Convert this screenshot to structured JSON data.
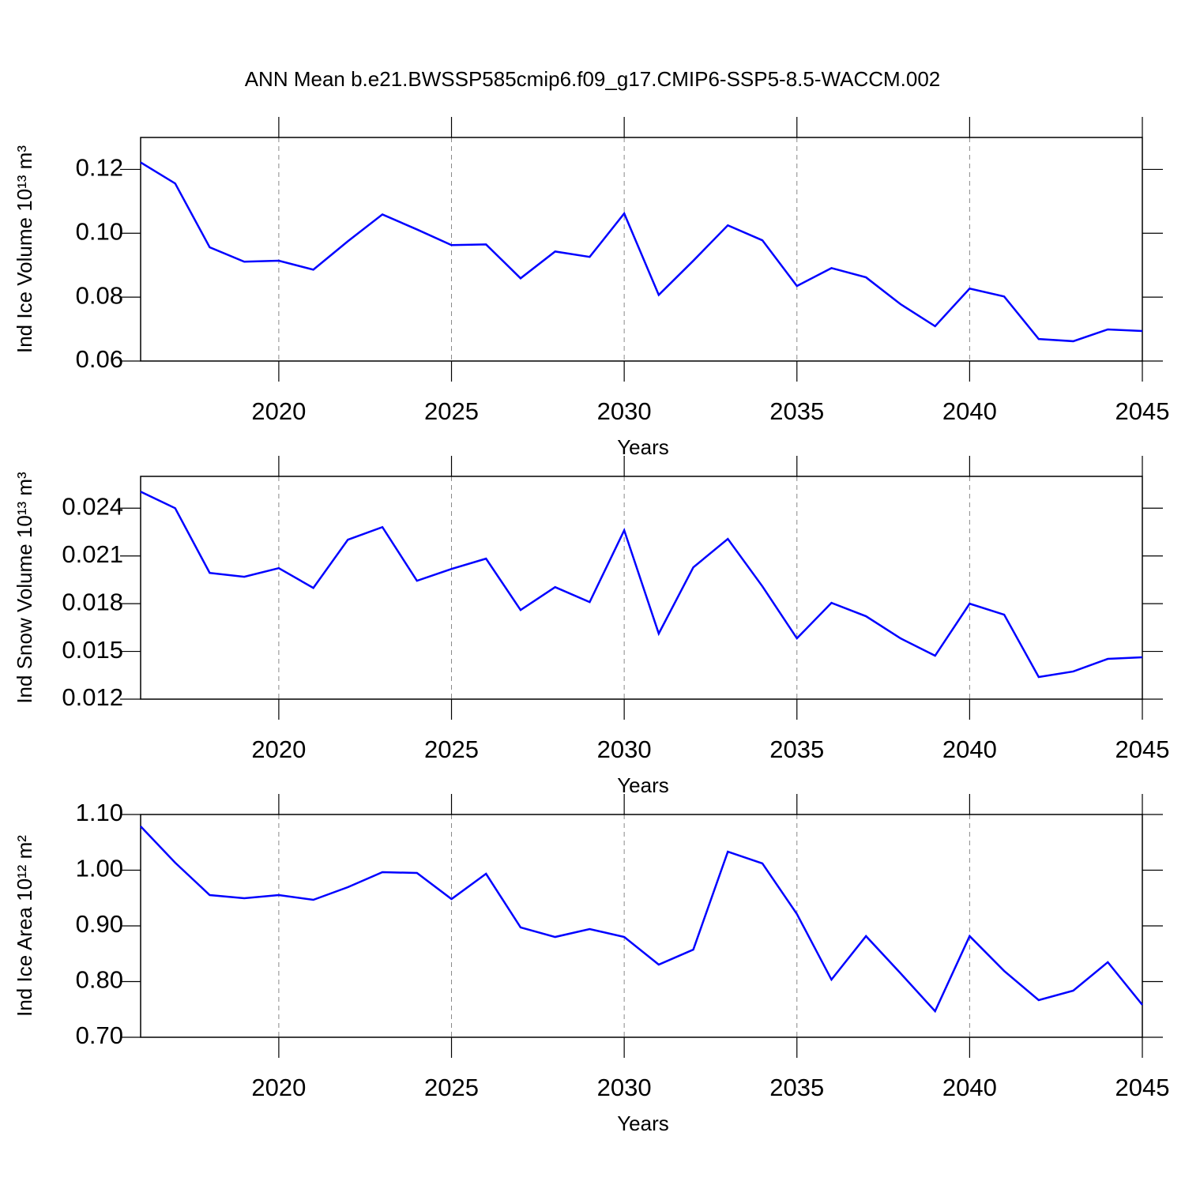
{
  "title": "ANN Mean b.e21.BWSSP585cmip6.f09_g17.CMIP6-SSP5-8.5-WACCM.002",
  "chart_data": [
    {
      "type": "line",
      "ylabel": "Ind Ice Volume 10¹³ m³",
      "xlabel": "Years",
      "color": "#0000ff",
      "xgrid": true,
      "x": [
        2016,
        2017,
        2018,
        2019,
        2020,
        2021,
        2022,
        2023,
        2024,
        2025,
        2026,
        2027,
        2028,
        2029,
        2030,
        2031,
        2032,
        2033,
        2034,
        2035,
        2036,
        2037,
        2038,
        2039,
        2040,
        2041,
        2042,
        2043,
        2044,
        2045
      ],
      "values": [
        0.1222,
        0.1156,
        0.0956,
        0.0911,
        0.0914,
        0.0886,
        0.0975,
        0.1059,
        0.1012,
        0.0963,
        0.0965,
        0.0859,
        0.0943,
        0.0926,
        0.1062,
        0.0807,
        0.0914,
        0.1025,
        0.0978,
        0.0835,
        0.0891,
        0.0862,
        0.0778,
        0.0709,
        0.0827,
        0.0802,
        0.0669,
        0.0662,
        0.0699,
        0.0694
      ],
      "xlim": [
        2016,
        2045
      ],
      "xticks": [
        2020,
        2025,
        2030,
        2035,
        2040,
        2045
      ],
      "ylim": [
        0.06,
        0.13
      ],
      "yticks": [
        0.06,
        0.08,
        {
          "value": 0.1,
          "label": "0.10"
        },
        0.12
      ]
    },
    {
      "type": "line",
      "ylabel": "Ind Snow Volume 10¹³ m³",
      "xlabel": "Years",
      "color": "#0000ff",
      "xgrid": true,
      "x": [
        2016,
        2017,
        2018,
        2019,
        2020,
        2021,
        2022,
        2023,
        2024,
        2025,
        2026,
        2027,
        2028,
        2029,
        2030,
        2031,
        2032,
        2033,
        2034,
        2035,
        2036,
        2037,
        2038,
        2039,
        2040,
        2041,
        2042,
        2043,
        2044,
        2045
      ],
      "values": [
        0.02504,
        0.024,
        0.01993,
        0.01969,
        0.02023,
        0.01899,
        0.02202,
        0.02281,
        0.01944,
        0.02018,
        0.02083,
        0.0176,
        0.01904,
        0.0181,
        0.02261,
        0.01612,
        0.02028,
        0.02207,
        0.01909,
        0.01582,
        0.01805,
        0.01721,
        0.01582,
        0.01473,
        0.018,
        0.01731,
        0.01339,
        0.01374,
        0.01453,
        0.01463
      ],
      "xlim": [
        2016,
        2045
      ],
      "xticks": [
        2020,
        2025,
        2030,
        2035,
        2040,
        2045
      ],
      "ylim": [
        0.012,
        0.026
      ],
      "yticks": [
        0.012,
        0.015,
        0.018,
        0.021,
        0.024
      ]
    },
    {
      "type": "line",
      "ylabel": "Ind Ice Area 10¹² m²",
      "xlabel": "Years",
      "color": "#0000ff",
      "xgrid": true,
      "x": [
        2016,
        2017,
        2018,
        2019,
        2020,
        2021,
        2022,
        2023,
        2024,
        2025,
        2026,
        2027,
        2028,
        2029,
        2030,
        2031,
        2032,
        2033,
        2034,
        2035,
        2036,
        2037,
        2038,
        2039,
        2040,
        2041,
        2042,
        2043,
        2044,
        2045
      ],
      "values": [
        1.0787,
        1.0135,
        0.9553,
        0.9496,
        0.9553,
        0.9468,
        0.9695,
        0.9965,
        0.995,
        0.9482,
        0.9936,
        0.8972,
        0.8801,
        0.8943,
        0.8801,
        0.8305,
        0.8574,
        1.0333,
        1.0121,
        0.9213,
        0.8035,
        0.8816,
        0.8149,
        0.7468,
        0.8816,
        0.8191,
        0.7667,
        0.7837,
        0.8348,
        0.7582
      ],
      "xlim": [
        2016,
        2045
      ],
      "xticks": [
        2020,
        2025,
        2030,
        2035,
        2040,
        2045
      ],
      "ylim": [
        0.7,
        1.1
      ],
      "yticks": [
        {
          "value": 0.7,
          "label": "0.70"
        },
        {
          "value": 0.8,
          "label": "0.80"
        },
        {
          "value": 0.9,
          "label": "0.90"
        },
        {
          "value": 1.0,
          "label": "1.00"
        },
        {
          "value": 1.1,
          "label": "1.10"
        }
      ]
    }
  ]
}
